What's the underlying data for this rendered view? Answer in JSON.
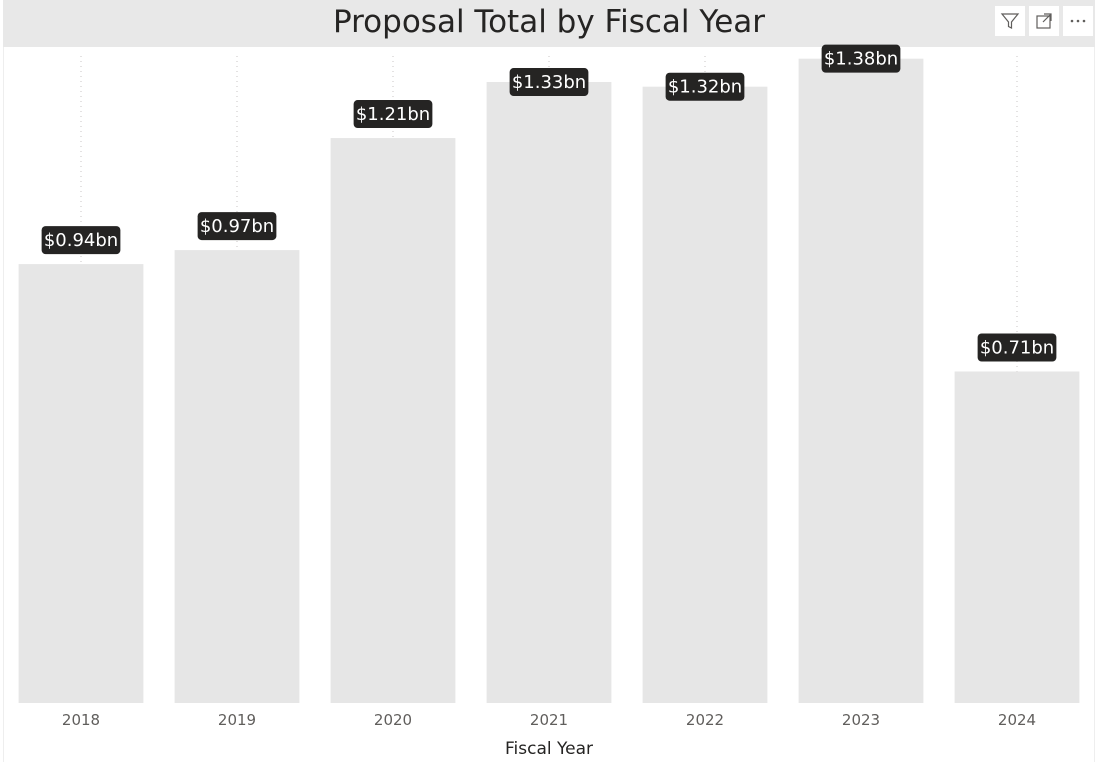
{
  "header": {
    "filter_icon": "filter-icon",
    "focus_icon": "focus-mode-icon",
    "more_icon": "more-options-icon"
  },
  "colors": {
    "bar": "#e6e6e6",
    "label_bg": "#252423",
    "label_text": "#ffffff",
    "title_bar": "#e8e8e8",
    "gridline": "#c8c6c4"
  },
  "chart_data": {
    "type": "bar",
    "title": "Proposal Total by Fiscal Year",
    "xlabel": "Fiscal Year",
    "ylabel": "",
    "categories": [
      "2018",
      "2019",
      "2020",
      "2021",
      "2022",
      "2023",
      "2024"
    ],
    "values": [
      0.94,
      0.97,
      1.21,
      1.33,
      1.32,
      1.38,
      0.71
    ],
    "data_labels": [
      "$0.94bn",
      "$0.97bn",
      "$1.21bn",
      "$1.33bn",
      "$1.32bn",
      "$1.38bn",
      "$0.71bn"
    ],
    "unit": "bn",
    "ylim": [
      0,
      1.42
    ],
    "grid": "vertical dotted",
    "legend": "none"
  }
}
